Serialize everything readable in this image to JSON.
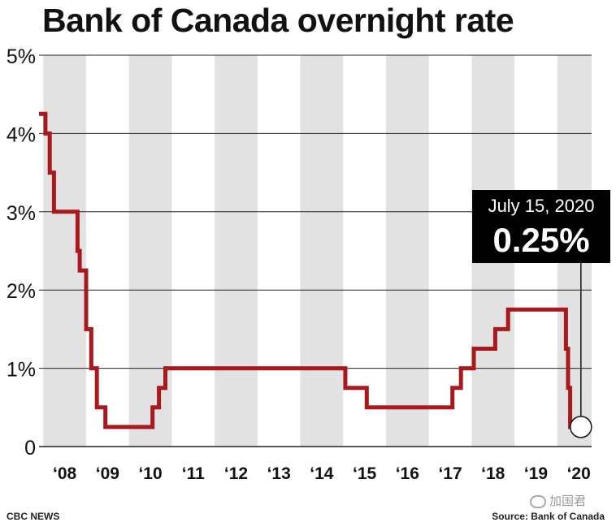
{
  "chart_data": {
    "type": "line",
    "title": "Bank of Canada overnight rate",
    "xlabel": "",
    "ylabel": "",
    "ylim": [
      0,
      5
    ],
    "xlim": [
      2007.9,
      2020.8
    ],
    "yticks": [
      {
        "value": 0,
        "label": "0"
      },
      {
        "value": 1,
        "label": "1%"
      },
      {
        "value": 2,
        "label": "2%"
      },
      {
        "value": 3,
        "label": "3%"
      },
      {
        "value": 4,
        "label": "4%"
      },
      {
        "value": 5,
        "label": "5%"
      }
    ],
    "year_labels": [
      "‘08",
      "‘09",
      "‘10",
      "‘11",
      "‘12",
      "‘13",
      "‘14",
      "‘15",
      "‘16",
      "‘17",
      "‘18",
      "‘19",
      "‘20"
    ],
    "years": [
      2008,
      2009,
      2010,
      2011,
      2012,
      2013,
      2014,
      2015,
      2016,
      2017,
      2018,
      2019,
      2020
    ],
    "shaded_years": [
      2008,
      2010,
      2012,
      2014,
      2016,
      2018,
      2020
    ],
    "series": [
      {
        "name": "Overnight rate",
        "color": "#a8181c",
        "points": [
          [
            2007.9,
            4.25
          ],
          [
            2008.05,
            4.25
          ],
          [
            2008.05,
            4.0
          ],
          [
            2008.15,
            4.0
          ],
          [
            2008.15,
            3.5
          ],
          [
            2008.25,
            3.5
          ],
          [
            2008.25,
            3.0
          ],
          [
            2008.8,
            3.0
          ],
          [
            2008.8,
            2.5
          ],
          [
            2008.85,
            2.5
          ],
          [
            2008.85,
            2.25
          ],
          [
            2009.0,
            2.25
          ],
          [
            2009.0,
            1.5
          ],
          [
            2009.12,
            1.5
          ],
          [
            2009.12,
            1.0
          ],
          [
            2009.25,
            1.0
          ],
          [
            2009.25,
            0.5
          ],
          [
            2009.45,
            0.5
          ],
          [
            2009.45,
            0.25
          ],
          [
            2010.55,
            0.25
          ],
          [
            2010.55,
            0.5
          ],
          [
            2010.7,
            0.5
          ],
          [
            2010.7,
            0.75
          ],
          [
            2010.85,
            0.75
          ],
          [
            2010.85,
            1.0
          ],
          [
            2015.05,
            1.0
          ],
          [
            2015.05,
            0.75
          ],
          [
            2015.55,
            0.75
          ],
          [
            2015.55,
            0.5
          ],
          [
            2017.55,
            0.5
          ],
          [
            2017.55,
            0.75
          ],
          [
            2017.75,
            0.75
          ],
          [
            2017.75,
            1.0
          ],
          [
            2018.05,
            1.0
          ],
          [
            2018.05,
            1.25
          ],
          [
            2018.55,
            1.25
          ],
          [
            2018.55,
            1.5
          ],
          [
            2018.85,
            1.5
          ],
          [
            2018.85,
            1.75
          ],
          [
            2020.2,
            1.75
          ],
          [
            2020.2,
            1.25
          ],
          [
            2020.25,
            1.25
          ],
          [
            2020.25,
            0.75
          ],
          [
            2020.3,
            0.75
          ],
          [
            2020.3,
            0.25
          ],
          [
            2020.55,
            0.25
          ]
        ]
      }
    ],
    "annotation": {
      "date": "July 15, 2020",
      "value_label": "0.25%",
      "x": 2020.55,
      "y": 0.25
    }
  },
  "footer": {
    "source_left": "CBC NEWS",
    "source_right": "Source: Bank of Canada",
    "watermark": "加国君"
  },
  "colors": {
    "shade": "#e2e2e2",
    "grid": "#222222",
    "line": "#a8181c",
    "callout_bg": "#000000",
    "callout_text": "#ffffff"
  }
}
